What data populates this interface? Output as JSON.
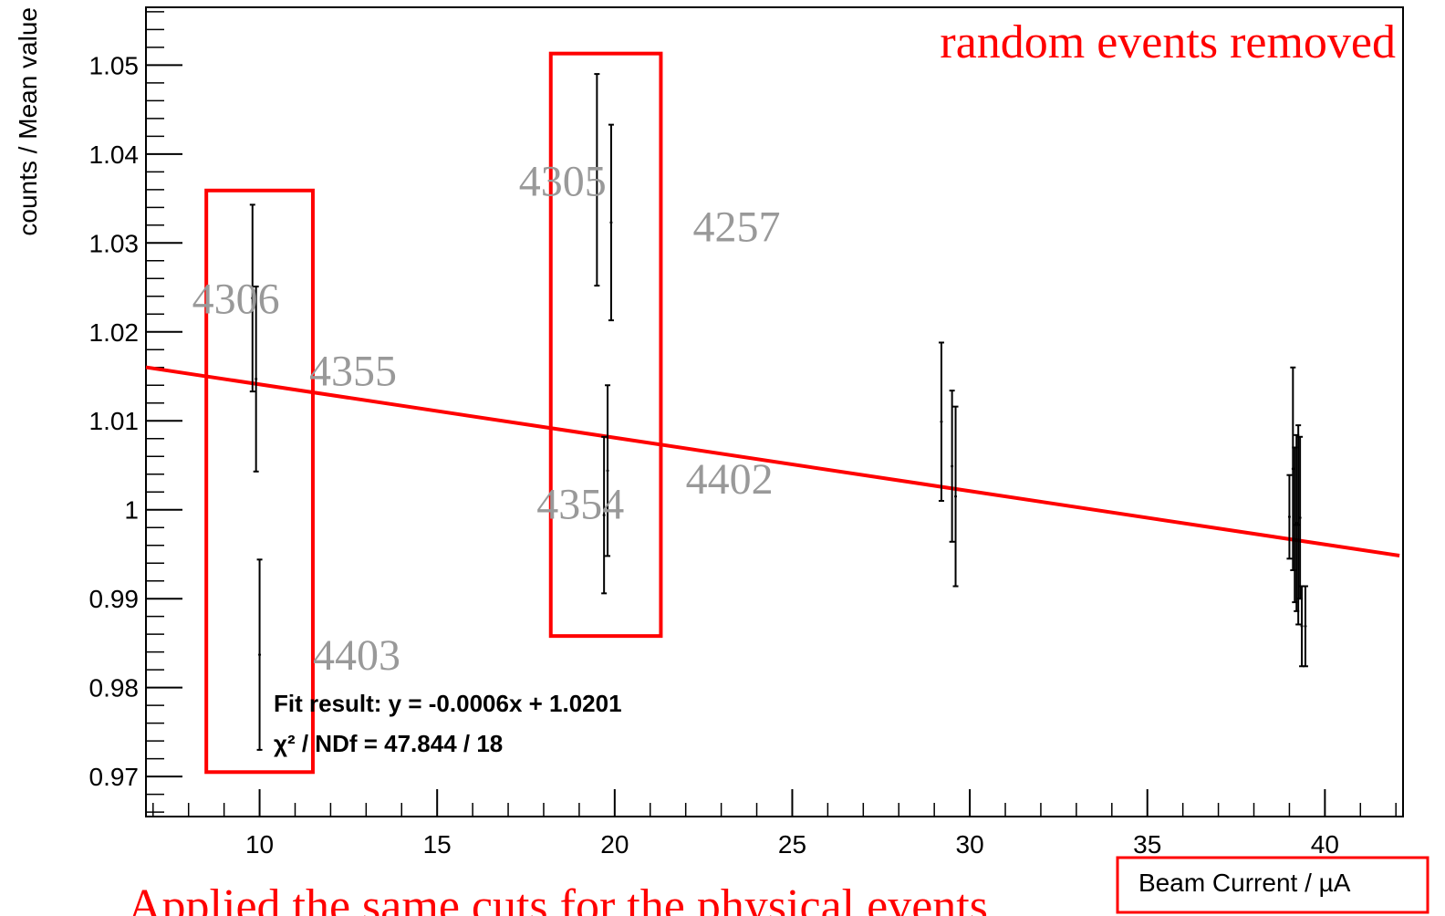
{
  "chart_data": {
    "type": "scatter",
    "title": "",
    "xlabel": "Beam Current / µA",
    "ylabel": "counts / Mean value",
    "xlim": [
      6.8,
      42.2
    ],
    "ylim": [
      0.9655,
      1.0565
    ],
    "x_ticks": [
      10,
      15,
      20,
      25,
      30,
      35,
      40
    ],
    "x_tick_labels": [
      "10",
      "15",
      "20",
      "25",
      "30",
      "35",
      "40"
    ],
    "y_ticks": [
      0.97,
      0.98,
      0.99,
      1.0,
      1.01,
      1.02,
      1.03,
      1.04,
      1.05
    ],
    "y_tick_labels": [
      "0.97",
      "0.98",
      "0.99",
      "1",
      "1.01",
      "1.02",
      "1.03",
      "1.04",
      "1.05"
    ],
    "points": [
      {
        "x": 9.8,
        "y": 1.0238,
        "err": 0.0105
      },
      {
        "x": 9.9,
        "y": 1.0147,
        "err": 0.0104
      },
      {
        "x": 10.0,
        "y": 0.9837,
        "err": 0.0107
      },
      {
        "x": 19.5,
        "y": 1.0371,
        "err": 0.0119
      },
      {
        "x": 19.9,
        "y": 1.0323,
        "err": 0.011
      },
      {
        "x": 19.7,
        "y": 0.9994,
        "err": 0.0088
      },
      {
        "x": 19.8,
        "y": 1.0044,
        "err": 0.0096
      },
      {
        "x": 29.2,
        "y": 1.0099,
        "err": 0.0089
      },
      {
        "x": 29.5,
        "y": 1.0049,
        "err": 0.0085
      },
      {
        "x": 29.6,
        "y": 1.0015,
        "err": 0.0101
      },
      {
        "x": 39.0,
        "y": 0.9992,
        "err": 0.0047
      },
      {
        "x": 39.1,
        "y": 1.0046,
        "err": 0.0114
      },
      {
        "x": 39.15,
        "y": 0.9983,
        "err": 0.0087
      },
      {
        "x": 39.2,
        "y": 0.9985,
        "err": 0.0099
      },
      {
        "x": 39.25,
        "y": 0.9983,
        "err": 0.0112
      },
      {
        "x": 39.3,
        "y": 0.9991,
        "err": 0.0091
      },
      {
        "x": 39.35,
        "y": 0.9869,
        "err": 0.0045
      },
      {
        "x": 39.45,
        "y": 0.9869,
        "err": 0.0045
      }
    ],
    "fit": {
      "slope": -0.0006,
      "intercept": 1.0201
    },
    "run_labels": [
      {
        "text": "4306",
        "x": 8.1,
        "y": 1.0221
      },
      {
        "text": "4355",
        "x": 11.4,
        "y": 1.014
      },
      {
        "text": "4403",
        "x": 11.5,
        "y": 0.982
      },
      {
        "text": "4305",
        "x": 17.3,
        "y": 1.0353
      },
      {
        "text": "4257",
        "x": 22.2,
        "y": 1.0302
      },
      {
        "text": "4354",
        "x": 17.8,
        "y": 0.999
      },
      {
        "text": "4402",
        "x": 22.0,
        "y": 1.0018
      }
    ],
    "boxes": [
      {
        "x0": 8.5,
        "x1": 11.5,
        "y0": 0.9705,
        "y1": 1.0359
      },
      {
        "x0": 18.2,
        "x1": 21.3,
        "y0": 0.9858,
        "y1": 1.0513
      }
    ],
    "fit_text_line1": "Fit result: y = -0.0006x + 1.0201",
    "fit_text_line2": "χ² / NDf = 47.844 / 18"
  },
  "annotations": {
    "top_right": "random events removed",
    "bottom": "Applied the same cuts for the physical events"
  },
  "colors": {
    "fit_line": "#ff0000",
    "boxes": "#ff0000",
    "run_labels": "#999999",
    "annotation": "#ff0000"
  }
}
